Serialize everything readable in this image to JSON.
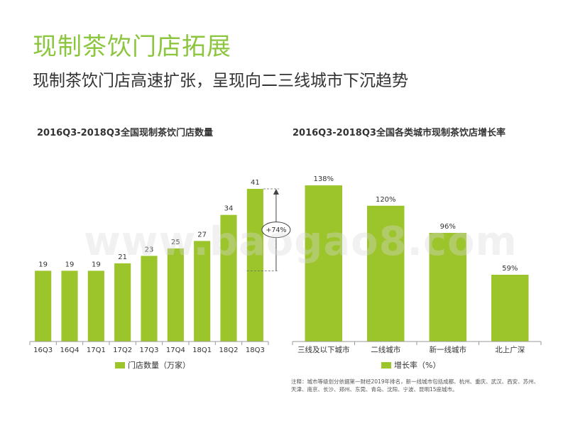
{
  "header": {
    "title": "现制茶饮门店拓展",
    "subtitle": "现制茶饮门店高速扩张，呈现向二三线城市下沉趋势"
  },
  "watermark": "www.baogao8.com",
  "colors": {
    "accent": "#8cc63f",
    "bar": "#9cc52b"
  },
  "chart_data": [
    {
      "type": "bar",
      "title": "2016Q3-2018Q3全国现制茶饮门店数量",
      "categories": [
        "16Q3",
        "16Q4",
        "17Q1",
        "17Q2",
        "17Q3",
        "17Q4",
        "18Q1",
        "18Q2",
        "18Q3"
      ],
      "series": [
        {
          "name": "门店数量（万家）",
          "values": [
            19,
            19,
            19,
            21,
            23,
            25,
            27,
            34,
            41
          ]
        }
      ],
      "value_labels": [
        "19",
        "19",
        "19",
        "21",
        "23",
        "25",
        "27",
        "34",
        "41"
      ],
      "annotation": "+74%",
      "ylim": [
        0,
        45
      ],
      "grid": false,
      "legend": "bottom"
    },
    {
      "type": "bar",
      "title": "2016Q3-2018Q3全国各类城市现制茶饮店增长率",
      "categories": [
        "三线及以下城市",
        "二线城市",
        "新一线城市",
        "北上广深"
      ],
      "series": [
        {
          "name": "增长率（%）",
          "values": [
            138,
            120,
            96,
            59
          ]
        }
      ],
      "value_labels": [
        "138%",
        "120%",
        "96%",
        "59%"
      ],
      "ylim": [
        0,
        160
      ],
      "grid": false,
      "legend": "bottom"
    }
  ],
  "footnote": "注释：城市等级划分依据第一财经2019年排名，新一线城市包括成都、杭州、重庆、武汉、西安、苏州、天津、南京、长沙、郑州、东莞、青岛、沈阳、宁波、昆明15座城市。"
}
